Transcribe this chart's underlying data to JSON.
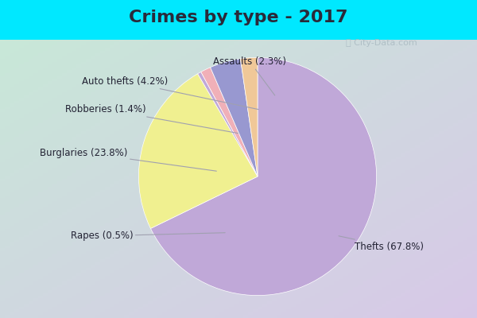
{
  "title": "Crimes by type - 2017",
  "slices": [
    {
      "label": "Thefts (67.8%)",
      "value": 67.8,
      "color": "#c0a8d8"
    },
    {
      "label": "Burglaries (23.8%)",
      "value": 23.8,
      "color": "#f0f090"
    },
    {
      "label": "Rapes (0.5%)",
      "value": 0.5,
      "color": "#c0a8d8"
    },
    {
      "label": "Robberies (1.4%)",
      "value": 1.4,
      "color": "#f0b0b8"
    },
    {
      "label": "Auto thefts (4.2%)",
      "value": 4.2,
      "color": "#9898d0"
    },
    {
      "label": "Assaults (2.3%)",
      "value": 2.3,
      "color": "#f0c898"
    }
  ],
  "background_top": "#00e8ff",
  "title_fontsize": 16,
  "label_fontsize": 8.5,
  "startangle": 90
}
